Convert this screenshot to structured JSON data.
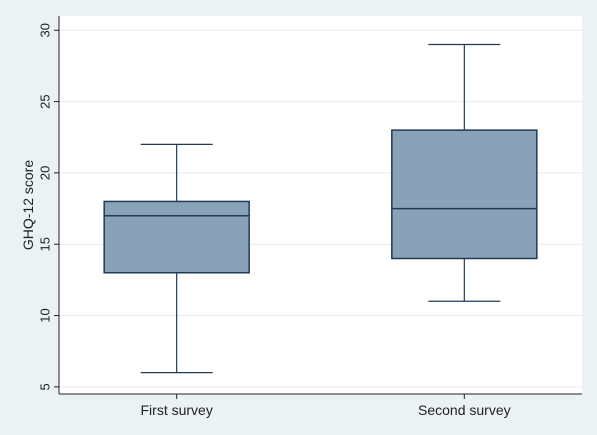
{
  "chart_data": {
    "type": "boxplot",
    "ylabel": "GHQ-12 score",
    "ylim": [
      4.5,
      31
    ],
    "yticks": [
      5,
      10,
      15,
      20,
      25,
      30
    ],
    "ytick_labels": [
      "5",
      "10",
      "15",
      "20",
      "25",
      "30"
    ],
    "grid": true,
    "categories": [
      "First survey",
      "Second survey"
    ],
    "boxes": [
      {
        "min": 6,
        "q1": 13,
        "median": 17,
        "q3": 18,
        "max": 22
      },
      {
        "min": 11,
        "q1": 14,
        "median": 17.5,
        "q3": 23,
        "max": 29
      }
    ],
    "colors": {
      "box_fill": "#8aa2b8",
      "box_stroke": "#1f3b57",
      "grid": "#e6eaee",
      "plot_bg": "#ffffff",
      "page_bg": "#eaf2f3"
    }
  }
}
